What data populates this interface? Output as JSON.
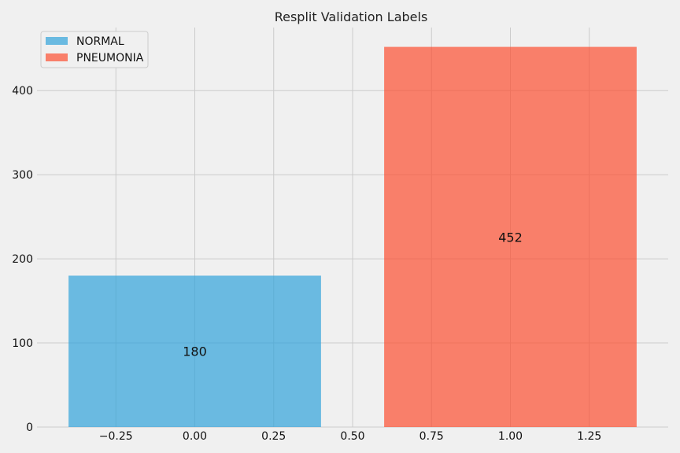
{
  "chart_data": {
    "type": "bar",
    "title": "Resplit Validation Labels",
    "xlabel": "",
    "ylabel": "",
    "xlim": [
      -0.5,
      1.5
    ],
    "ylim": [
      0,
      475
    ],
    "xticks": [
      -0.25,
      0.0,
      0.25,
      0.5,
      0.75,
      1.0,
      1.25
    ],
    "xtick_labels": [
      "−0.25",
      "0.00",
      "0.25",
      "0.50",
      "0.75",
      "1.00",
      "1.25"
    ],
    "yticks": [
      0,
      100,
      200,
      300,
      400
    ],
    "ytick_labels": [
      "0",
      "100",
      "200",
      "300",
      "400"
    ],
    "grid": true,
    "legend_position": "top-left",
    "bar_width": 0.8,
    "series": [
      {
        "name": "NORMAL",
        "x": 0,
        "value": 180,
        "label": "180",
        "color": "#30a2da"
      },
      {
        "name": "PNEUMONIA",
        "x": 1,
        "value": 452,
        "label": "452",
        "color": "#fc4f30"
      }
    ]
  }
}
